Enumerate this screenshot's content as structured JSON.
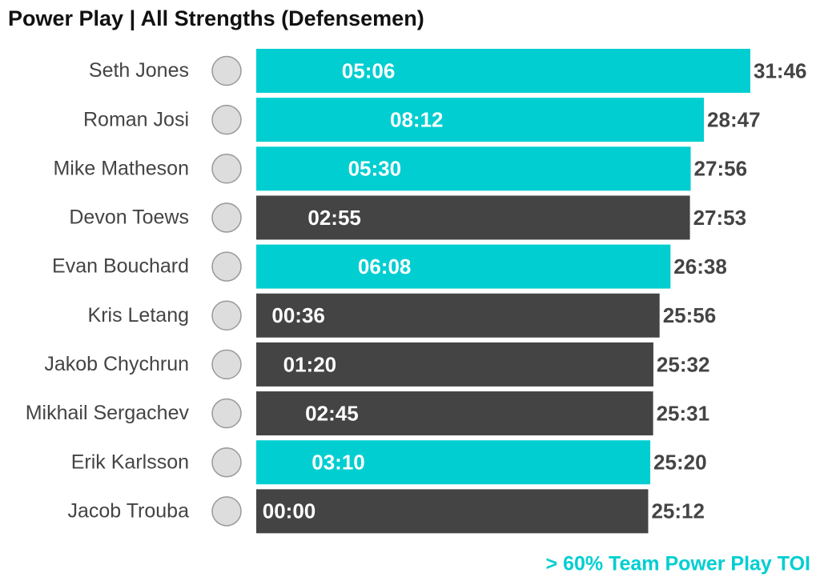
{
  "chart_data": {
    "type": "bar",
    "orientation": "horizontal",
    "title": "Power Play | All Strengths (Defensemen)",
    "categories": [
      "Seth Jones",
      "Roman Josi",
      "Mike Matheson",
      "Devon Toews",
      "Evan Bouchard",
      "Kris Letang",
      "Jakob Chychrun",
      "Mikhail Sergachev",
      "Erik Karlsson",
      "Jacob Trouba"
    ],
    "values": [
      1906,
      1727,
      1676,
      1673,
      1598,
      1556,
      1532,
      1531,
      1520,
      1512
    ],
    "value_labels": [
      "31:46",
      "28:47",
      "27:56",
      "27:53",
      "26:38",
      "25:56",
      "25:32",
      "25:31",
      "25:20",
      "25:12"
    ],
    "inner_values": [
      306,
      492,
      330,
      175,
      368,
      36,
      80,
      165,
      190,
      0
    ],
    "inner_value_labels": [
      "05:06",
      "08:12",
      "05:30",
      "02:55",
      "06:08",
      "00:36",
      "01:20",
      "02:45",
      "03:10",
      "00:00"
    ],
    "colors": [
      "#00CED1",
      "#00CED1",
      "#00CED1",
      "#444444",
      "#00CED1",
      "#444444",
      "#444444",
      "#444444",
      "#00CED1",
      "#444444"
    ],
    "annotation": "> 60% Team Power Play TOI",
    "annotation_color": "#00CED1"
  }
}
